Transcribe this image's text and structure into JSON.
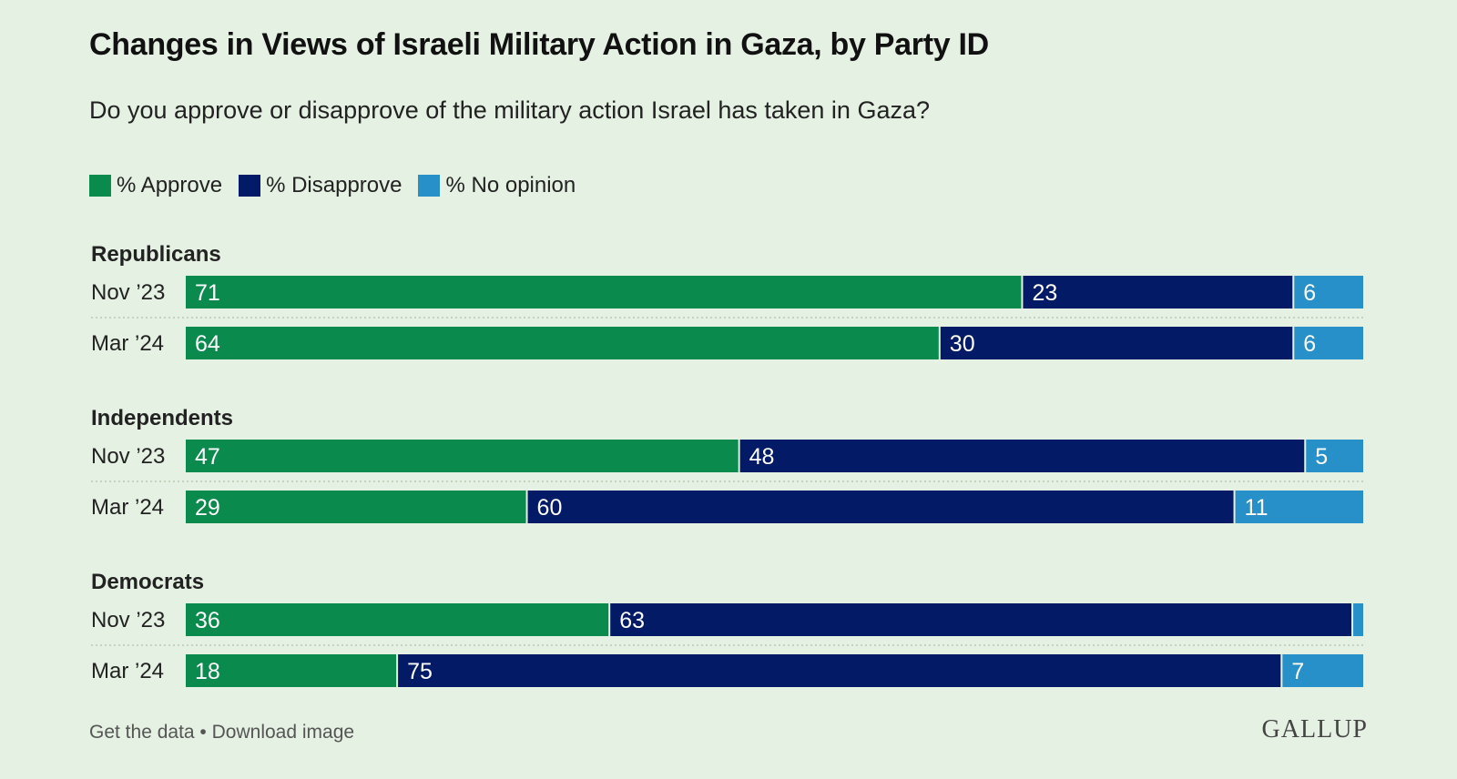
{
  "header": {
    "title": "Changes in Views of Israeli Military Action in Gaza, by Party ID",
    "subtitle": "Do you approve or disapprove of the military action Israel has taken in Gaza?"
  },
  "legend": [
    {
      "label": "% Approve",
      "color": "#0a8a4c"
    },
    {
      "label": "% Disapprove",
      "color": "#031a66"
    },
    {
      "label": "% No opinion",
      "color": "#2790c9"
    }
  ],
  "chart_data": {
    "type": "bar",
    "orientation": "horizontal-stacked",
    "series": [
      {
        "name": "% Approve",
        "color": "#0a8a4c"
      },
      {
        "name": "% Disapprove",
        "color": "#031a66"
      },
      {
        "name": "% No opinion",
        "color": "#2790c9"
      }
    ],
    "groups": [
      {
        "name": "Republicans",
        "rows": [
          {
            "label": "Nov ’23",
            "values": [
              71,
              23,
              6
            ],
            "labels": [
              "71",
              "23",
              "6"
            ]
          },
          {
            "label": "Mar ’24",
            "values": [
              64,
              30,
              6
            ],
            "labels": [
              "64",
              "30",
              "6"
            ]
          }
        ]
      },
      {
        "name": "Independents",
        "rows": [
          {
            "label": "Nov ’23",
            "values": [
              47,
              48,
              5
            ],
            "labels": [
              "47",
              "48",
              "5"
            ]
          },
          {
            "label": "Mar ’24",
            "values": [
              29,
              60,
              11
            ],
            "labels": [
              "29",
              "60",
              "11"
            ]
          }
        ]
      },
      {
        "name": "Democrats",
        "rows": [
          {
            "label": "Nov ’23",
            "values": [
              36,
              63,
              1
            ],
            "labels": [
              "36",
              "63",
              ""
            ]
          },
          {
            "label": "Mar ’24",
            "values": [
              18,
              75,
              7
            ],
            "labels": [
              "18",
              "75",
              "7"
            ]
          }
        ]
      }
    ]
  },
  "footer": {
    "get_data": "Get the data",
    "separator": " • ",
    "download": "Download image",
    "logo": "GALLUP"
  }
}
